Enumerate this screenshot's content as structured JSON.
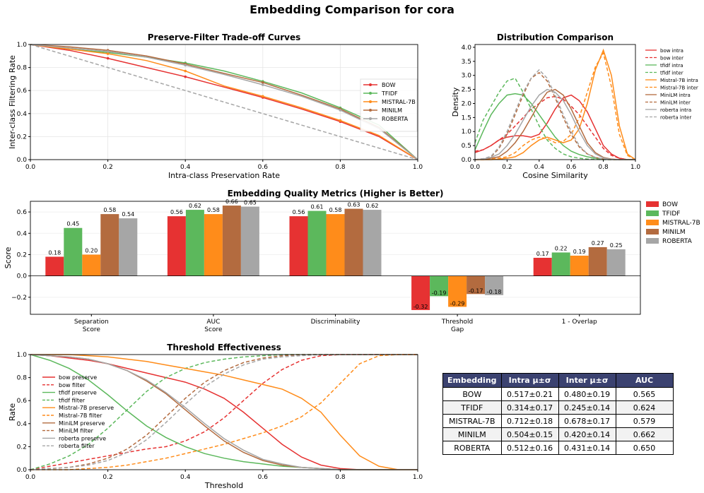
{
  "title": "Embedding Comparison for cora",
  "colors": {
    "BOW": "#e63232",
    "TFIDF": "#5cb85c",
    "MISTRAL-7B": "#ff8c1a",
    "MINILM": "#b36b3f",
    "ROBERTA": "#a6a6a6",
    "random": "#a6a6a6"
  },
  "chart_data": [
    {
      "type": "line",
      "title": "Preserve-Filter Trade-off Curves",
      "xlabel": "Intra-class Preservation Rate",
      "ylabel": "Inter-class Filtering Rate",
      "xlim": [
        0,
        1
      ],
      "ylim": [
        0,
        1
      ],
      "xticks": [
        "0.0",
        "0.2",
        "0.4",
        "0.6",
        "0.8",
        "1.0"
      ],
      "yticks": [
        "0.0",
        "0.2",
        "0.4",
        "0.6",
        "0.8",
        "1.0"
      ],
      "grid": true,
      "legend_position": "center-right",
      "series": [
        {
          "name": "BOW",
          "key": "BOW",
          "x": [
            0,
            0.1,
            0.2,
            0.3,
            0.4,
            0.5,
            0.6,
            0.7,
            0.8,
            0.9,
            1.0
          ],
          "y": [
            1.0,
            0.95,
            0.88,
            0.8,
            0.72,
            0.63,
            0.54,
            0.44,
            0.33,
            0.2,
            0.0
          ]
        },
        {
          "name": "TFIDF",
          "key": "TFIDF",
          "x": [
            0,
            0.1,
            0.2,
            0.3,
            0.4,
            0.5,
            0.6,
            0.7,
            0.8,
            0.9,
            1.0
          ],
          "y": [
            1.0,
            0.96,
            0.93,
            0.89,
            0.84,
            0.77,
            0.68,
            0.58,
            0.45,
            0.3,
            0.0
          ]
        },
        {
          "name": "MISTRAL-7B",
          "key": "MISTRAL-7B",
          "x": [
            0,
            0.1,
            0.2,
            0.3,
            0.4,
            0.5,
            0.6,
            0.7,
            0.8,
            0.9,
            1.0
          ],
          "y": [
            1.0,
            0.96,
            0.92,
            0.86,
            0.77,
            0.64,
            0.55,
            0.45,
            0.34,
            0.21,
            0.0
          ]
        },
        {
          "name": "MINILM",
          "key": "MINILM",
          "x": [
            0,
            0.1,
            0.2,
            0.3,
            0.4,
            0.5,
            0.6,
            0.7,
            0.8,
            0.9,
            1.0
          ],
          "y": [
            1.0,
            0.98,
            0.95,
            0.9,
            0.83,
            0.75,
            0.67,
            0.56,
            0.44,
            0.28,
            0.0
          ]
        },
        {
          "name": "ROBERTA",
          "key": "ROBERTA",
          "x": [
            0,
            0.1,
            0.2,
            0.3,
            0.4,
            0.5,
            0.6,
            0.7,
            0.8,
            0.9,
            1.0
          ],
          "y": [
            1.0,
            0.97,
            0.94,
            0.89,
            0.82,
            0.74,
            0.65,
            0.55,
            0.43,
            0.27,
            0.0
          ]
        },
        {
          "name": "",
          "key": "random",
          "dashed": true,
          "x": [
            0,
            1
          ],
          "y": [
            1,
            0
          ]
        }
      ]
    },
    {
      "type": "line",
      "title": "Distribution Comparison",
      "xlabel": "Cosine Similarity",
      "ylabel": "Density",
      "xlim": [
        0,
        1
      ],
      "ylim": [
        0,
        4.1
      ],
      "xticks": [
        "0.0",
        "0.2",
        "0.4",
        "0.6",
        "0.8",
        "1.0"
      ],
      "yticks": [
        "0.0",
        "0.5",
        "1.0",
        "1.5",
        "2.0",
        "2.5",
        "3.0",
        "3.5",
        "4.0"
      ],
      "legend_position": "right-outside",
      "x": [
        0,
        0.05,
        0.1,
        0.15,
        0.2,
        0.25,
        0.3,
        0.35,
        0.4,
        0.45,
        0.5,
        0.55,
        0.6,
        0.65,
        0.7,
        0.75,
        0.8,
        0.85,
        0.9,
        0.95,
        1.0
      ],
      "series": [
        {
          "name": "bow intra",
          "key": "BOW",
          "dashed": false,
          "values": [
            0.25,
            0.35,
            0.5,
            0.7,
            0.8,
            0.85,
            0.85,
            0.8,
            0.9,
            1.3,
            1.8,
            2.2,
            2.3,
            2.1,
            1.7,
            1.1,
            0.5,
            0.2,
            0.05,
            0.0,
            0.0
          ]
        },
        {
          "name": "bow inter",
          "key": "BOW",
          "dashed": true,
          "values": [
            0.3,
            0.35,
            0.5,
            0.7,
            0.9,
            1.2,
            1.5,
            1.8,
            2.0,
            2.2,
            2.25,
            2.15,
            1.9,
            1.6,
            1.2,
            0.8,
            0.4,
            0.15,
            0.05,
            0.0,
            0.0
          ]
        },
        {
          "name": "tfidf intra",
          "key": "TFIDF",
          "dashed": false,
          "values": [
            0.35,
            1.0,
            1.6,
            2.0,
            2.3,
            2.35,
            2.3,
            2.0,
            1.6,
            1.2,
            0.8,
            0.5,
            0.3,
            0.18,
            0.1,
            0.05,
            0.02,
            0.01,
            0.0,
            0.0,
            0.0
          ]
        },
        {
          "name": "tfidf inter",
          "key": "TFIDF",
          "dashed": true,
          "values": [
            0.6,
            1.4,
            1.9,
            2.4,
            2.8,
            2.9,
            2.4,
            1.8,
            1.2,
            0.7,
            0.4,
            0.2,
            0.1,
            0.05,
            0.02,
            0.01,
            0.0,
            0.0,
            0.0,
            0.0,
            0.0
          ]
        },
        {
          "name": "Mistral-7B intra",
          "key": "MISTRAL-7B",
          "dashed": false,
          "values": [
            0.0,
            0.0,
            0.0,
            0.02,
            0.05,
            0.1,
            0.25,
            0.5,
            0.7,
            0.8,
            0.7,
            0.6,
            0.7,
            1.1,
            2.0,
            3.2,
            3.9,
            3.0,
            1.2,
            0.2,
            0.0
          ]
        },
        {
          "name": "Mistral-7B inter",
          "key": "MISTRAL-7B",
          "dashed": true,
          "values": [
            0.0,
            0.0,
            0.02,
            0.05,
            0.1,
            0.25,
            0.5,
            0.7,
            0.8,
            0.75,
            0.6,
            0.65,
            0.9,
            1.5,
            2.4,
            3.3,
            3.8,
            2.6,
            0.9,
            0.15,
            0.0
          ]
        },
        {
          "name": "MiniLM intra",
          "key": "MINILM",
          "dashed": false,
          "values": [
            0.0,
            0.02,
            0.05,
            0.1,
            0.3,
            0.6,
            1.0,
            1.5,
            2.0,
            2.4,
            2.5,
            2.3,
            1.8,
            1.2,
            0.6,
            0.25,
            0.08,
            0.02,
            0.0,
            0.0,
            0.0
          ]
        },
        {
          "name": "MiniLM inter",
          "key": "MINILM",
          "dashed": true,
          "values": [
            0.0,
            0.03,
            0.1,
            0.4,
            0.9,
            1.6,
            2.3,
            2.9,
            3.1,
            2.8,
            2.2,
            1.5,
            0.9,
            0.45,
            0.2,
            0.08,
            0.02,
            0.0,
            0.0,
            0.0,
            0.0
          ]
        },
        {
          "name": "roberta intra",
          "key": "ROBERTA",
          "dashed": false,
          "values": [
            0.0,
            0.02,
            0.08,
            0.2,
            0.5,
            0.9,
            1.4,
            1.9,
            2.3,
            2.5,
            2.4,
            2.1,
            1.6,
            1.0,
            0.5,
            0.2,
            0.06,
            0.01,
            0.0,
            0.0,
            0.0
          ]
        },
        {
          "name": "roberta inter",
          "key": "ROBERTA",
          "dashed": true,
          "values": [
            0.0,
            0.03,
            0.12,
            0.45,
            1.0,
            1.7,
            2.4,
            2.9,
            3.2,
            2.9,
            2.3,
            1.6,
            1.0,
            0.5,
            0.2,
            0.08,
            0.02,
            0.0,
            0.0,
            0.0,
            0.0
          ]
        }
      ]
    },
    {
      "type": "bar",
      "title": "Embedding Quality Metrics (Higher is Better)",
      "ylabel": "Score",
      "ylim": [
        -0.36,
        0.7
      ],
      "yticks": [
        "−0.2",
        "0.0",
        "0.2",
        "0.4",
        "0.6"
      ],
      "categories": [
        "Separation\nScore",
        "AUC\nScore",
        "Discriminability",
        "Threshold\nGap",
        "1 - Overlap"
      ],
      "legend_position": "right-outside",
      "series": [
        {
          "name": "BOW",
          "values": [
            0.18,
            0.56,
            0.56,
            -0.32,
            0.17
          ],
          "labels": [
            "0.18",
            "0.56",
            "0.56",
            "-0.32",
            "0.17"
          ]
        },
        {
          "name": "TFIDF",
          "values": [
            0.45,
            0.62,
            0.61,
            -0.19,
            0.22
          ],
          "labels": [
            "0.45",
            "0.62",
            "0.61",
            "-0.19",
            "0.22"
          ]
        },
        {
          "name": "MISTRAL-7B",
          "values": [
            0.2,
            0.58,
            0.58,
            -0.29,
            0.19
          ],
          "labels": [
            "0.20",
            "0.58",
            "0.58",
            "-0.29",
            "0.19"
          ]
        },
        {
          "name": "MINILM",
          "values": [
            0.58,
            0.66,
            0.63,
            -0.17,
            0.27
          ],
          "labels": [
            "0.58",
            "0.66",
            "0.63",
            "-0.17",
            "0.27"
          ]
        },
        {
          "name": "ROBERTA",
          "values": [
            0.54,
            0.65,
            0.62,
            -0.18,
            0.25
          ],
          "labels": [
            "0.54",
            "0.65",
            "0.62",
            "-0.18",
            "0.25"
          ]
        }
      ]
    },
    {
      "type": "line",
      "title": "Threshold Effectiveness",
      "xlabel": "Threshold",
      "ylabel": "Rate",
      "xlim": [
        0,
        1
      ],
      "ylim": [
        0,
        1
      ],
      "xticks": [
        "0.0",
        "0.2",
        "0.4",
        "0.6",
        "0.8",
        "1.0"
      ],
      "yticks": [
        "0.0",
        "0.2",
        "0.4",
        "0.6",
        "0.8",
        "1.0"
      ],
      "legend_position": "center-left",
      "x": [
        0,
        0.05,
        0.1,
        0.15,
        0.2,
        0.25,
        0.3,
        0.35,
        0.4,
        0.45,
        0.5,
        0.55,
        0.6,
        0.65,
        0.7,
        0.75,
        0.8,
        0.85,
        0.9,
        0.95,
        1.0
      ],
      "series": [
        {
          "name": "bow preserve",
          "key": "BOW",
          "dashed": false,
          "values": [
            1.0,
            0.99,
            0.97,
            0.95,
            0.92,
            0.88,
            0.84,
            0.8,
            0.76,
            0.7,
            0.62,
            0.5,
            0.36,
            0.22,
            0.11,
            0.04,
            0.01,
            0.0,
            0.0,
            0.0,
            0.0
          ]
        },
        {
          "name": "bow filter",
          "key": "BOW",
          "dashed": true,
          "values": [
            0.0,
            0.03,
            0.06,
            0.09,
            0.12,
            0.15,
            0.18,
            0.2,
            0.25,
            0.33,
            0.45,
            0.6,
            0.75,
            0.87,
            0.95,
            0.99,
            1.0,
            1.0,
            1.0,
            1.0,
            1.0
          ]
        },
        {
          "name": "tfidf preserve",
          "key": "TFIDF",
          "dashed": false,
          "values": [
            1.0,
            0.95,
            0.88,
            0.78,
            0.65,
            0.51,
            0.38,
            0.28,
            0.2,
            0.14,
            0.1,
            0.07,
            0.05,
            0.03,
            0.02,
            0.01,
            0.0,
            0.0,
            0.0,
            0.0,
            0.0
          ]
        },
        {
          "name": "tfidf filter",
          "key": "TFIDF",
          "dashed": true,
          "values": [
            0.0,
            0.05,
            0.12,
            0.22,
            0.36,
            0.52,
            0.68,
            0.8,
            0.88,
            0.93,
            0.96,
            0.98,
            0.99,
            1.0,
            1.0,
            1.0,
            1.0,
            1.0,
            1.0,
            1.0,
            1.0
          ]
        },
        {
          "name": "Mistral-7B preserve",
          "key": "MISTRAL-7B",
          "dashed": false,
          "values": [
            1.0,
            1.0,
            1.0,
            0.99,
            0.98,
            0.96,
            0.94,
            0.91,
            0.88,
            0.85,
            0.82,
            0.78,
            0.74,
            0.7,
            0.62,
            0.5,
            0.3,
            0.12,
            0.03,
            0.0,
            0.0
          ]
        },
        {
          "name": "Mistral-7B filter",
          "key": "MISTRAL-7B",
          "dashed": true,
          "values": [
            0.0,
            0.0,
            0.0,
            0.01,
            0.02,
            0.04,
            0.07,
            0.1,
            0.14,
            0.18,
            0.22,
            0.27,
            0.32,
            0.38,
            0.46,
            0.58,
            0.75,
            0.92,
            0.99,
            1.0,
            1.0
          ]
        },
        {
          "name": "MiniLM preserve",
          "key": "MINILM",
          "dashed": false,
          "values": [
            1.0,
            0.99,
            0.98,
            0.96,
            0.92,
            0.86,
            0.77,
            0.66,
            0.52,
            0.38,
            0.25,
            0.15,
            0.08,
            0.04,
            0.02,
            0.01,
            0.0,
            0.0,
            0.0,
            0.0,
            0.0
          ]
        },
        {
          "name": "MiniLM filter",
          "key": "MINILM",
          "dashed": true,
          "values": [
            0.0,
            0.01,
            0.02,
            0.05,
            0.1,
            0.18,
            0.3,
            0.46,
            0.62,
            0.76,
            0.86,
            0.93,
            0.97,
            0.99,
            1.0,
            1.0,
            1.0,
            1.0,
            1.0,
            1.0,
            1.0
          ]
        },
        {
          "name": "roberta preserve",
          "key": "ROBERTA",
          "dashed": false,
          "values": [
            1.0,
            0.99,
            0.98,
            0.96,
            0.92,
            0.86,
            0.78,
            0.67,
            0.54,
            0.4,
            0.27,
            0.17,
            0.09,
            0.05,
            0.02,
            0.01,
            0.0,
            0.0,
            0.0,
            0.0,
            0.0
          ]
        },
        {
          "name": "roberta filter",
          "key": "ROBERTA",
          "dashed": true,
          "values": [
            0.0,
            0.01,
            0.02,
            0.04,
            0.08,
            0.15,
            0.26,
            0.41,
            0.57,
            0.72,
            0.83,
            0.91,
            0.96,
            0.98,
            0.99,
            1.0,
            1.0,
            1.0,
            1.0,
            1.0,
            1.0
          ]
        }
      ]
    }
  ],
  "table": {
    "headers": [
      "Embedding",
      "Intra μ±σ",
      "Inter μ±σ",
      "AUC"
    ],
    "rows": [
      [
        "BOW",
        "0.517±0.21",
        "0.480±0.19",
        "0.565"
      ],
      [
        "TFIDF",
        "0.314±0.17",
        "0.245±0.14",
        "0.624"
      ],
      [
        "MISTRAL-7B",
        "0.712±0.18",
        "0.678±0.17",
        "0.579"
      ],
      [
        "MINILM",
        "0.504±0.15",
        "0.420±0.14",
        "0.662"
      ],
      [
        "ROBERTA",
        "0.512±0.16",
        "0.431±0.14",
        "0.650"
      ]
    ]
  }
}
